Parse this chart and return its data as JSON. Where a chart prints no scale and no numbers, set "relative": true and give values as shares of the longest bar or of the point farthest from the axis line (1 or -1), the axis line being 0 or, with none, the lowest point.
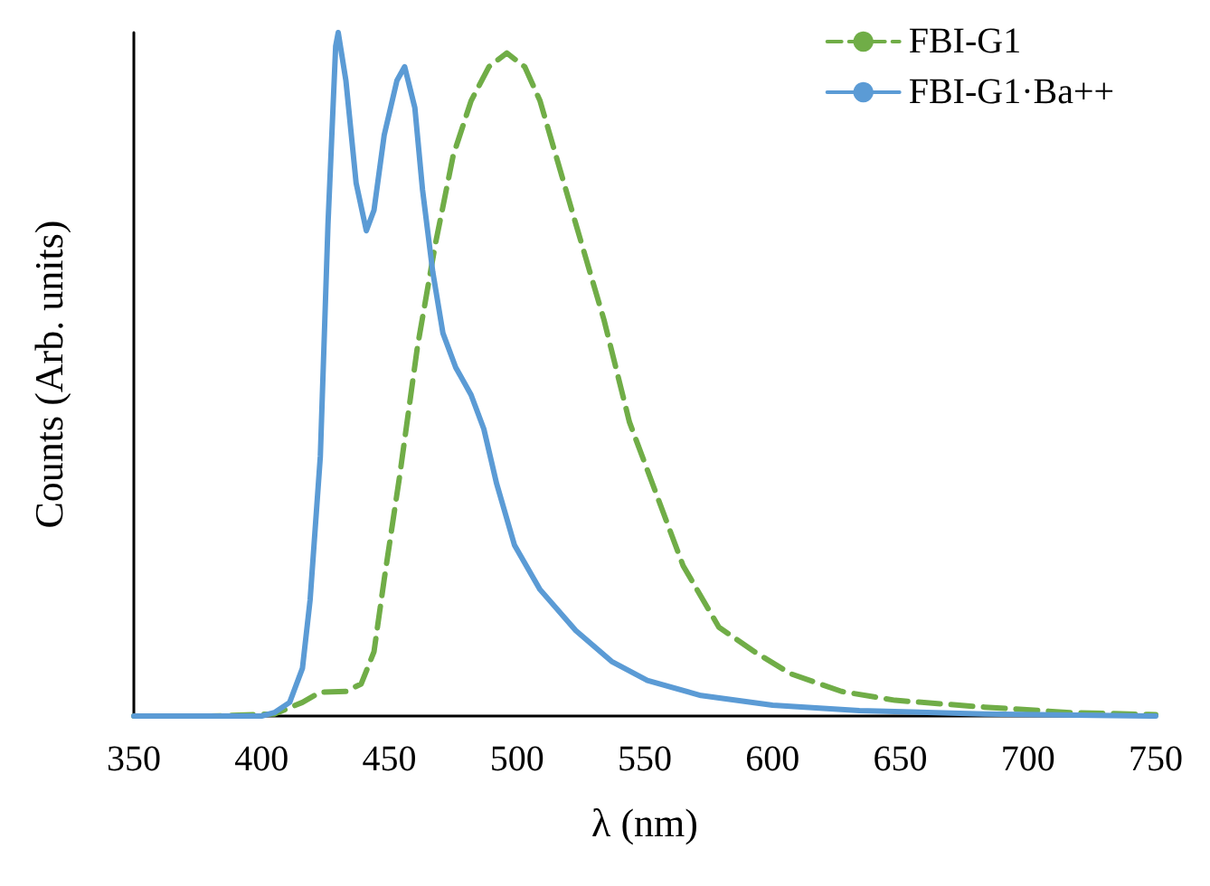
{
  "chart_data": {
    "type": "line",
    "xlabel": "λ (nm)",
    "ylabel": "Counts (Arb. units)",
    "relative": true,
    "xlim": [
      350,
      750
    ],
    "xticks": [
      350,
      400,
      450,
      500,
      550,
      600,
      650,
      700,
      750
    ],
    "grid": false,
    "legend": "top right",
    "marker": "none",
    "series": [
      {
        "name": "FBI-G1",
        "color": "#70ad47",
        "line_style": "dashed",
        "x": [
          350,
          380,
          405,
          416,
          423,
          433,
          439,
          444,
          448,
          454,
          461,
          468,
          475,
          482,
          489,
          496,
          503,
          509,
          516,
          523,
          534,
          544,
          555,
          565,
          579,
          593,
          607,
          627,
          648,
          683,
          717,
          750
        ],
        "values": [
          0,
          0,
          0.003,
          0.02,
          0.035,
          0.036,
          0.047,
          0.094,
          0.2,
          0.35,
          0.54,
          0.69,
          0.82,
          0.9,
          0.95,
          0.97,
          0.95,
          0.9,
          0.81,
          0.72,
          0.58,
          0.43,
          0.32,
          0.22,
          0.13,
          0.094,
          0.062,
          0.036,
          0.023,
          0.013,
          0.005,
          0.002
        ]
      },
      {
        "name": "FBI-G1·Ba++",
        "color": "#5b9bd5",
        "line_style": "solid",
        "x": [
          350,
          380,
          400,
          405,
          411,
          416,
          419,
          423,
          426,
          429,
          430,
          433,
          437,
          441,
          444,
          448,
          453,
          456,
          460,
          463,
          467,
          471,
          476,
          482,
          487,
          492,
          499,
          509,
          523,
          537,
          551,
          572,
          600,
          634,
          683,
          750
        ],
        "values": [
          0,
          0,
          0,
          0.005,
          0.02,
          0.07,
          0.17,
          0.38,
          0.72,
          0.98,
          1,
          0.93,
          0.78,
          0.71,
          0.74,
          0.85,
          0.93,
          0.95,
          0.89,
          0.77,
          0.65,
          0.56,
          0.51,
          0.47,
          0.42,
          0.34,
          0.25,
          0.185,
          0.125,
          0.08,
          0.052,
          0.03,
          0.016,
          0.008,
          0.003,
          0
        ]
      }
    ]
  }
}
